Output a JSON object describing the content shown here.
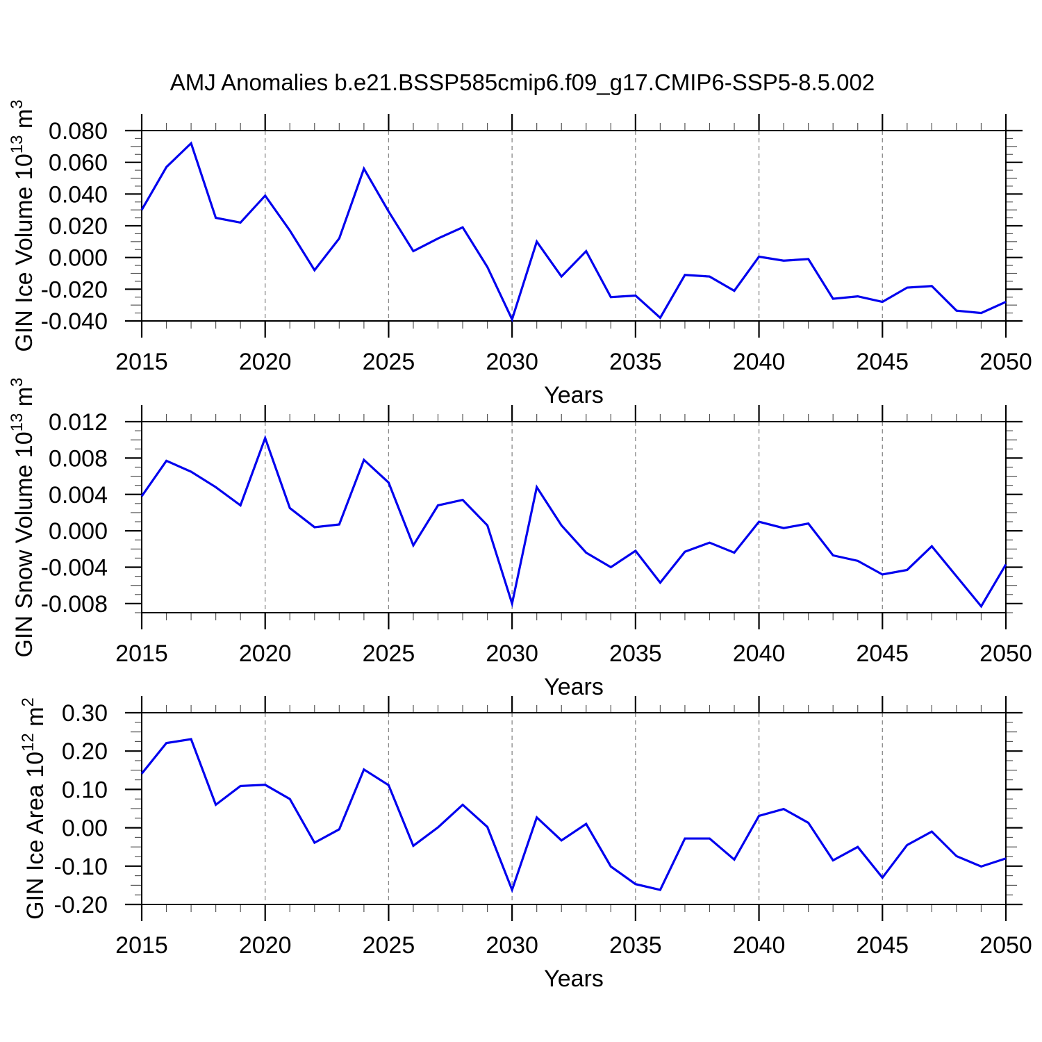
{
  "title": "AMJ Anomalies b.e21.BSSP585cmip6.f09_g17.CMIP6-SSP5-8.5.002",
  "line_color": "#0000EE",
  "grid_color": "#888888",
  "x_axis": {
    "label": "Years",
    "range": [
      2015,
      2050
    ],
    "minor_step": 1,
    "grid_years": [
      2020,
      2025,
      2030,
      2035,
      2040,
      2045
    ],
    "ticks": [
      {
        "v": 2015,
        "label": "2015"
      },
      {
        "v": 2020,
        "label": "2020"
      },
      {
        "v": 2025,
        "label": "2025"
      },
      {
        "v": 2030,
        "label": "2030"
      },
      {
        "v": 2035,
        "label": "2035"
      },
      {
        "v": 2040,
        "label": "2040"
      },
      {
        "v": 2045,
        "label": "2045"
      },
      {
        "v": 2050,
        "label": "2050"
      }
    ]
  },
  "chart_data": [
    {
      "type": "line",
      "name": "gin-ice-volume",
      "ylabel": {
        "text": "GIN Ice Volume 10",
        "sup": "13",
        "text2": " m",
        "sup2": "3"
      },
      "ylim": [
        -0.04,
        0.08
      ],
      "ytick_minor_step": 0.005,
      "yticks": [
        {
          "v": 0.08,
          "label": "0.080"
        },
        {
          "v": 0.06,
          "label": "0.060"
        },
        {
          "v": 0.04,
          "label": "0.040"
        },
        {
          "v": 0.02,
          "label": "0.020"
        },
        {
          "v": 0.0,
          "label": "0.000"
        },
        {
          "v": -0.02,
          "label": "-0.020"
        },
        {
          "v": -0.04,
          "label": "-0.040"
        }
      ],
      "x": [
        2015,
        2016,
        2017,
        2018,
        2019,
        2020,
        2021,
        2022,
        2023,
        2024,
        2025,
        2026,
        2027,
        2028,
        2029,
        2030,
        2031,
        2032,
        2033,
        2034,
        2035,
        2036,
        2037,
        2038,
        2039,
        2040,
        2041,
        2042,
        2043,
        2044,
        2045,
        2046,
        2047,
        2048,
        2049,
        2050
      ],
      "values": [
        0.03,
        0.057,
        0.072,
        0.025,
        0.022,
        0.039,
        0.017,
        -0.008,
        0.012,
        0.056,
        0.029,
        0.004,
        0.012,
        0.019,
        -0.006,
        -0.039,
        0.01,
        -0.012,
        0.004,
        -0.025,
        -0.024,
        -0.038,
        -0.011,
        -0.012,
        -0.021,
        0.0005,
        -0.002,
        -0.001,
        -0.026,
        -0.0245,
        -0.028,
        -0.019,
        -0.018,
        -0.0335,
        -0.035,
        -0.028
      ]
    },
    {
      "type": "line",
      "name": "gin-snow-volume",
      "ylabel": {
        "text": "GIN Snow Volume 10",
        "sup": "13",
        "text2": " m",
        "sup2": "3"
      },
      "ylim": [
        -0.009,
        0.012
      ],
      "ytick_minor_step": 0.001,
      "yticks": [
        {
          "v": 0.012,
          "label": "0.012"
        },
        {
          "v": 0.008,
          "label": "0.008"
        },
        {
          "v": 0.004,
          "label": "0.004"
        },
        {
          "v": 0.0,
          "label": "0.000"
        },
        {
          "v": -0.004,
          "label": "-0.004"
        },
        {
          "v": -0.008,
          "label": "-0.008"
        }
      ],
      "x": [
        2015,
        2016,
        2017,
        2018,
        2019,
        2020,
        2021,
        2022,
        2023,
        2024,
        2025,
        2026,
        2027,
        2028,
        2029,
        2030,
        2031,
        2032,
        2033,
        2034,
        2035,
        2036,
        2037,
        2038,
        2039,
        2040,
        2041,
        2042,
        2043,
        2044,
        2045,
        2046,
        2047,
        2048,
        2049,
        2050
      ],
      "values": [
        0.0038,
        0.0077,
        0.0065,
        0.0048,
        0.0028,
        0.0102,
        0.0025,
        0.0004,
        0.0007,
        0.0078,
        0.0053,
        -0.0016,
        0.0028,
        0.0034,
        0.0006,
        -0.008,
        0.0048,
        0.0006,
        -0.0024,
        -0.004,
        -0.0022,
        -0.0057,
        -0.0023,
        -0.0013,
        -0.0024,
        0.001,
        0.0003,
        0.0008,
        -0.0027,
        -0.0033,
        -0.0048,
        -0.0043,
        -0.0017,
        -0.005,
        -0.0083,
        -0.0037
      ]
    },
    {
      "type": "line",
      "name": "gin-ice-area",
      "ylabel": {
        "text": "GIN Ice Area 10",
        "sup": "12",
        "text2": " m",
        "sup2": "2"
      },
      "ylim": [
        -0.2,
        0.3
      ],
      "ytick_minor_step": 0.025,
      "yticks": [
        {
          "v": 0.3,
          "label": "0.30"
        },
        {
          "v": 0.2,
          "label": "0.20"
        },
        {
          "v": 0.1,
          "label": "0.10"
        },
        {
          "v": 0.0,
          "label": "0.00"
        },
        {
          "v": -0.1,
          "label": "-0.10"
        },
        {
          "v": -0.2,
          "label": "-0.20"
        }
      ],
      "x": [
        2015,
        2016,
        2017,
        2018,
        2019,
        2020,
        2021,
        2022,
        2023,
        2024,
        2025,
        2026,
        2027,
        2028,
        2029,
        2030,
        2031,
        2032,
        2033,
        2034,
        2035,
        2036,
        2037,
        2038,
        2039,
        2040,
        2041,
        2042,
        2043,
        2044,
        2045,
        2046,
        2047,
        2048,
        2049,
        2050
      ],
      "values": [
        0.141,
        0.221,
        0.231,
        0.06,
        0.109,
        0.112,
        0.075,
        -0.039,
        -0.004,
        0.152,
        0.111,
        -0.047,
        0.001,
        0.06,
        0.002,
        -0.162,
        0.027,
        -0.033,
        0.01,
        -0.101,
        -0.147,
        -0.162,
        -0.028,
        -0.028,
        -0.083,
        0.031,
        0.049,
        0.013,
        -0.085,
        -0.05,
        -0.13,
        -0.045,
        -0.01,
        -0.074,
        -0.101,
        -0.08
      ]
    }
  ]
}
